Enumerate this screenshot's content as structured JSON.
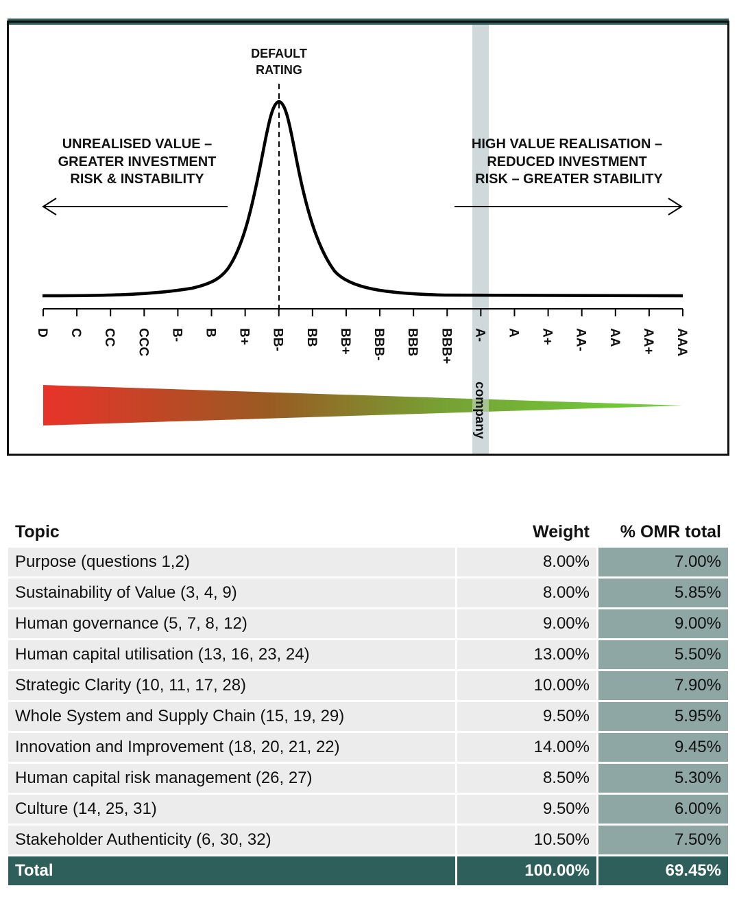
{
  "diagram": {
    "default_label_line1": "DEFAULT",
    "default_label_line2": "RATING",
    "left_text": [
      "UNREALISED VALUE –",
      "GREATER INVESTMENT",
      "RISK & INSTABILITY"
    ],
    "right_text": [
      "HIGH VALUE REALISATION –",
      "REDUCED INVESTMENT",
      "RISK – GREATER STABILITY"
    ],
    "ratings": [
      "D",
      "C",
      "CC",
      "CCC",
      "B-",
      "B",
      "B+",
      "BB-",
      "BB",
      "BB+",
      "BBB-",
      "BBB",
      "BBB+",
      "A-",
      "A",
      "A+",
      "AA-",
      "AA",
      "AA+",
      "AAA"
    ],
    "default_rating": "BB-",
    "company_rating": "A-",
    "company_label": "company",
    "colors": {
      "red": "#e8332a",
      "green": "#6ed63a",
      "highlight": "#cfd9db",
      "border": "#111111",
      "top_bar": "#2f5f5a"
    }
  },
  "table": {
    "headers": {
      "topic": "Topic",
      "weight": "Weight",
      "omr": "% OMR total"
    },
    "rows": [
      {
        "topic": "Purpose (questions 1,2)",
        "weight": "8.00%",
        "omr": "7.00%"
      },
      {
        "topic": "Sustainability of Value (3, 4, 9)",
        "weight": "8.00%",
        "omr": "5.85%"
      },
      {
        "topic": "Human governance (5, 7, 8, 12)",
        "weight": "9.00%",
        "omr": "9.00%"
      },
      {
        "topic": "Human capital utilisation (13, 16, 23, 24)",
        "weight": "13.00%",
        "omr": "5.50%"
      },
      {
        "topic": "Strategic Clarity (10, 11, 17, 28)",
        "weight": "10.00%",
        "omr": "7.90%"
      },
      {
        "topic": "Whole System and Supply Chain (15, 19, 29)",
        "weight": "9.50%",
        "omr": "5.95%"
      },
      {
        "topic": "Innovation and Improvement (18, 20, 21, 22)",
        "weight": "14.00%",
        "omr": "9.45%"
      },
      {
        "topic": "Human capital risk management (26, 27)",
        "weight": "8.50%",
        "omr": "5.30%"
      },
      {
        "topic": "Culture (14, 25, 31)",
        "weight": "9.50%",
        "omr": "6.00%"
      },
      {
        "topic": "Stakeholder Authenticity (6, 30, 32)",
        "weight": "10.50%",
        "omr": "7.50%"
      }
    ],
    "total": {
      "topic": "Total",
      "weight": "100.00%",
      "omr": "69.45%"
    },
    "colors": {
      "row_bg": "#ececec",
      "omr_bg": "#8ea6a4",
      "total_bg": "#2f5f5a"
    }
  }
}
